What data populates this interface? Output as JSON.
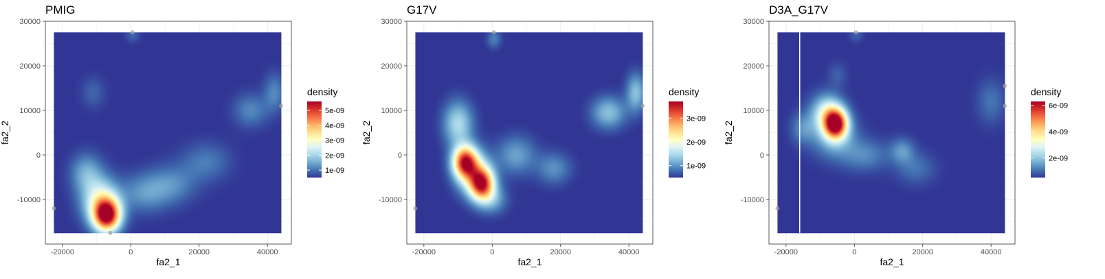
{
  "chart_data": [
    {
      "type": "heatmap",
      "title": "PMIG",
      "xlabel": "fa2_1",
      "ylabel": "fa2_2",
      "xlim": [
        -25000,
        47000
      ],
      "ylim": [
        -20000,
        30000
      ],
      "x_ticks": [
        -20000,
        0,
        20000,
        40000
      ],
      "y_ticks": [
        -10000,
        0,
        10000,
        20000,
        30000
      ],
      "x_tick_labels": [
        "-20000",
        "0",
        "20000",
        "40000"
      ],
      "y_tick_labels": [
        "-10000",
        "0",
        "10000",
        "20000",
        "30000"
      ],
      "raster_extent": {
        "x": [
          -22500,
          44000
        ],
        "y": [
          -17500,
          27500
        ]
      },
      "legend": {
        "title": "density",
        "range": [
          5e-10,
          5.6e-09
        ],
        "breaks": [
          1e-09,
          2e-09,
          3e-09,
          4e-09,
          5e-09
        ],
        "labels": [
          "1e-09",
          "2e-09",
          "3e-09",
          "4e-09",
          "5e-09"
        ],
        "colors": [
          "#313695",
          "#4575b4",
          "#74add1",
          "#abd9e9",
          "#e0f3f8",
          "#ffffbf",
          "#fee090",
          "#fdae61",
          "#f46d43",
          "#d73027",
          "#a50026"
        ]
      },
      "hotspots": [
        {
          "x": -7000,
          "y": -13500,
          "sx": 2800,
          "sy": 2600,
          "value": 5e-09
        },
        {
          "x": -9000,
          "y": -10000,
          "sx": 3800,
          "sy": 3500,
          "value": 2e-09
        },
        {
          "x": -13000,
          "y": -4000,
          "sx": 3200,
          "sy": 3000,
          "value": 1e-09
        },
        {
          "x": 4000,
          "y": -8500,
          "sx": 5000,
          "sy": 3000,
          "value": 8e-10
        },
        {
          "x": 12000,
          "y": -6500,
          "sx": 5000,
          "sy": 3000,
          "value": 7e-10
        },
        {
          "x": 22000,
          "y": -1500,
          "sx": 5000,
          "sy": 3000,
          "value": 6e-10
        },
        {
          "x": 35000,
          "y": 10000,
          "sx": 3500,
          "sy": 2600,
          "value": 7e-10
        },
        {
          "x": 42000,
          "y": 14000,
          "sx": 2200,
          "sy": 3000,
          "value": 7e-10
        },
        {
          "x": -11000,
          "y": 14000,
          "sx": 2500,
          "sy": 2500,
          "value": 4e-10
        },
        {
          "x": 500,
          "y": 27000,
          "sx": 1500,
          "sy": 1200,
          "value": 4e-10
        }
      ],
      "boundary_points": [
        {
          "x": 500,
          "y": 27500
        },
        {
          "x": -22500,
          "y": -12000
        },
        {
          "x": 44000,
          "y": 11000
        },
        {
          "x": -6000,
          "y": -17500
        }
      ]
    },
    {
      "type": "heatmap",
      "title": "G17V",
      "xlabel": "fa2_1",
      "ylabel": "fa2_2",
      "xlim": [
        -25000,
        47000
      ],
      "ylim": [
        -20000,
        30000
      ],
      "x_ticks": [
        -20000,
        0,
        20000,
        40000
      ],
      "y_ticks": [
        -10000,
        0,
        10000,
        20000,
        30000
      ],
      "x_tick_labels": [
        "-20000",
        "0",
        "20000",
        "40000"
      ],
      "y_tick_labels": [
        "-10000",
        "0",
        "10000",
        "20000",
        "30000"
      ],
      "raster_extent": {
        "x": [
          -22500,
          44000
        ],
        "y": [
          -17500,
          27500
        ]
      },
      "legend": {
        "title": "density",
        "range": [
          5e-10,
          3.7e-09
        ],
        "breaks": [
          1e-09,
          2e-09,
          3e-09
        ],
        "labels": [
          "1e-09",
          "2e-09",
          "3e-09"
        ],
        "colors": [
          "#313695",
          "#4575b4",
          "#74add1",
          "#abd9e9",
          "#e0f3f8",
          "#ffffbf",
          "#fee090",
          "#fdae61",
          "#f46d43",
          "#d73027",
          "#a50026"
        ]
      },
      "hotspots": [
        {
          "x": -3000,
          "y": -6500,
          "sx": 2500,
          "sy": 2500,
          "value": 2.6e-09
        },
        {
          "x": -8000,
          "y": -1500,
          "sx": 2500,
          "sy": 2500,
          "value": 2.6e-09
        },
        {
          "x": -5500,
          "y": -4000,
          "sx": 3500,
          "sy": 3500,
          "value": 1.2e-09
        },
        {
          "x": -10000,
          "y": 7000,
          "sx": 3000,
          "sy": 3500,
          "value": 1e-09
        },
        {
          "x": 0,
          "y": -10000,
          "sx": 3000,
          "sy": 2200,
          "value": 6e-10
        },
        {
          "x": 7000,
          "y": 0,
          "sx": 4000,
          "sy": 3000,
          "value": 6e-10
        },
        {
          "x": 18000,
          "y": -3000,
          "sx": 3500,
          "sy": 2500,
          "value": 5e-10
        },
        {
          "x": 34000,
          "y": 9500,
          "sx": 3500,
          "sy": 2500,
          "value": 8e-10
        },
        {
          "x": 42000,
          "y": 14000,
          "sx": 2000,
          "sy": 3000,
          "value": 8e-10
        },
        {
          "x": 500,
          "y": 26000,
          "sx": 1500,
          "sy": 1500,
          "value": 4e-10
        }
      ],
      "boundary_points": [
        {
          "x": 500,
          "y": 27500
        },
        {
          "x": -22500,
          "y": -12000
        },
        {
          "x": 44000,
          "y": 11000
        }
      ]
    },
    {
      "type": "heatmap",
      "title": "D3A_G17V",
      "xlabel": "fa2_1",
      "ylabel": "fa2_2",
      "xlim": [
        -25000,
        47000
      ],
      "ylim": [
        -20000,
        30000
      ],
      "x_ticks": [
        -20000,
        0,
        20000,
        40000
      ],
      "y_ticks": [
        -10000,
        0,
        10000,
        20000,
        30000
      ],
      "x_tick_labels": [
        "-20000",
        "0",
        "20000",
        "40000"
      ],
      "y_tick_labels": [
        "-10000",
        "0",
        "10000",
        "20000",
        "30000"
      ],
      "raster_extent": {
        "x": [
          -22500,
          44000
        ],
        "y": [
          -17500,
          27500
        ]
      },
      "raster_gap_x": -16000,
      "legend": {
        "title": "density",
        "range": [
          5e-10,
          6.3e-09
        ],
        "breaks": [
          2e-09,
          4e-09,
          6e-09
        ],
        "labels": [
          "2e-09",
          "4e-09",
          "6e-09"
        ],
        "colors": [
          "#313695",
          "#4575b4",
          "#74add1",
          "#abd9e9",
          "#e0f3f8",
          "#ffffbf",
          "#fee090",
          "#fdae61",
          "#f46d43",
          "#d73027",
          "#a50026"
        ]
      },
      "hotspots": [
        {
          "x": -5500,
          "y": 7000,
          "sx": 2400,
          "sy": 2300,
          "value": 5.4e-09
        },
        {
          "x": -8000,
          "y": 9500,
          "sx": 3200,
          "sy": 2800,
          "value": 2.2e-09
        },
        {
          "x": -6000,
          "y": 4000,
          "sx": 4500,
          "sy": 3200,
          "value": 1.2e-09
        },
        {
          "x": -15000,
          "y": 6000,
          "sx": 2500,
          "sy": 2500,
          "value": 8e-10
        },
        {
          "x": 3000,
          "y": 0,
          "sx": 5000,
          "sy": 2500,
          "value": 8e-10
        },
        {
          "x": 14000,
          "y": 1000,
          "sx": 2500,
          "sy": 2000,
          "value": 9e-10
        },
        {
          "x": 18000,
          "y": -3000,
          "sx": 4000,
          "sy": 2500,
          "value": 6e-10
        },
        {
          "x": 40000,
          "y": 12000,
          "sx": 3000,
          "sy": 3500,
          "value": 6e-10
        },
        {
          "x": -5000,
          "y": 18000,
          "sx": 2000,
          "sy": 2000,
          "value": 4e-10
        },
        {
          "x": 500,
          "y": 27000,
          "sx": 1500,
          "sy": 1200,
          "value": 4e-10
        }
      ],
      "boundary_points": [
        {
          "x": 500,
          "y": 27500
        },
        {
          "x": -22500,
          "y": -12000
        },
        {
          "x": 44000,
          "y": 11000
        },
        {
          "x": 44000,
          "y": 15500
        }
      ]
    }
  ]
}
